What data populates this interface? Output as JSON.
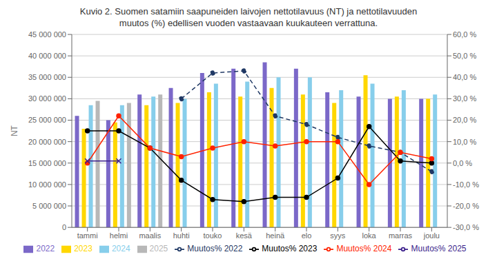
{
  "chart_data": {
    "type": "bar",
    "title": "Kuvio 2. Suomen satamiin saapuneiden laivojen nettotilavuus (NT) ja nettotilavuuden\nmuutos (%) edellisen vuoden vastaavaan kuukauteen verrattuna.",
    "ylabel": "NT",
    "categories": [
      "tammi",
      "helmi",
      "maalis",
      "huhti",
      "touko",
      "kesä",
      "heinä",
      "elo",
      "syys",
      "loka",
      "marras",
      "joulu"
    ],
    "series": [
      {
        "name": "2022",
        "type": "bar",
        "color": "#7B68C8",
        "values": [
          26000000,
          25000000,
          31000000,
          32500000,
          36000000,
          37000000,
          38500000,
          37000000,
          31500000,
          30500000,
          30000000,
          30000000
        ]
      },
      {
        "name": "2023",
        "type": "bar",
        "color": "#FFD700",
        "values": [
          23000000,
          24500000,
          28500000,
          29000000,
          31500000,
          30500000,
          32500000,
          31000000,
          29000000,
          35500000,
          30500000,
          30000000
        ]
      },
      {
        "name": "2024",
        "type": "bar",
        "color": "#87CEEB",
        "values": [
          28500000,
          28500000,
          30500000,
          30000000,
          33500000,
          34000000,
          35000000,
          35000000,
          32000000,
          33500000,
          32000000,
          31000000
        ]
      },
      {
        "name": "2025",
        "type": "bar",
        "color": "#B8B8B8",
        "values": [
          29500000,
          29000000,
          31000000,
          null,
          null,
          null,
          null,
          null,
          null,
          null,
          null,
          null
        ]
      },
      {
        "name": "Muutos% 2022",
        "type": "line",
        "axis": "y2",
        "color": "#1F3864",
        "line_style": "dashed",
        "marker": "circle",
        "values": [
          null,
          null,
          null,
          30.0,
          42.0,
          43.0,
          22.0,
          18.0,
          12.0,
          8.0,
          5.0,
          -4.0
        ]
      },
      {
        "name": "Muutos% 2023",
        "type": "line",
        "axis": "y2",
        "color": "#000000",
        "line_style": "solid",
        "marker": "circle",
        "values": [
          15.0,
          15.0,
          7.0,
          -8.0,
          -17.0,
          -18.0,
          -16.0,
          -16.0,
          -7.0,
          17.0,
          1.0,
          0.0
        ]
      },
      {
        "name": "Muutos% 2024",
        "type": "line",
        "axis": "y2",
        "color": "#FF2200",
        "line_style": "solid",
        "marker": "circle",
        "values": [
          0.0,
          22.0,
          7.0,
          3.0,
          7.0,
          10.0,
          8.0,
          10.0,
          10.0,
          -10.0,
          5.0,
          2.0
        ]
      },
      {
        "name": "Muutos% 2025",
        "type": "line",
        "axis": "y2",
        "color": "#3B1F8C",
        "line_style": "solid",
        "marker": "x",
        "values": [
          1.0,
          1.0,
          null,
          null,
          null,
          null,
          null,
          null,
          null,
          null,
          null,
          null
        ]
      }
    ],
    "ylim": [
      0,
      45000000
    ],
    "yticks": [
      0,
      {
        "value": 5000000,
        "label": "5 000 000"
      },
      {
        "value": 10000000,
        "label": "10 000 000"
      },
      {
        "value": 15000000,
        "label": "15 000 000"
      },
      {
        "value": 20000000,
        "label": "20 000 000"
      },
      {
        "value": 25000000,
        "label": "25 000 000"
      },
      {
        "value": 30000000,
        "label": "30 000 000"
      },
      {
        "value": 35000000,
        "label": "35 000 000"
      },
      {
        "value": 40000000,
        "label": "40 000 000"
      },
      {
        "value": 45000000,
        "label": "45 000 000"
      }
    ],
    "y2lim": [
      -30.0,
      60.0
    ],
    "y2ticks": [
      {
        "value": -30.0,
        "label": "-30,0 %"
      },
      {
        "value": -20.0,
        "label": "-20,0 %"
      },
      {
        "value": -10.0,
        "label": "-10,0 %"
      },
      {
        "value": 0.0,
        "label": "0,0 %"
      },
      {
        "value": 10.0,
        "label": "10,0 %"
      },
      {
        "value": 20.0,
        "label": "20,0 %"
      },
      {
        "value": 30.0,
        "label": "30,0 %"
      },
      {
        "value": 40.0,
        "label": "40,0 %"
      },
      {
        "value": 50.0,
        "label": "50,0 %"
      },
      {
        "value": 60.0,
        "label": "60,0 %"
      }
    ],
    "grid": true,
    "legend": "bottom"
  }
}
